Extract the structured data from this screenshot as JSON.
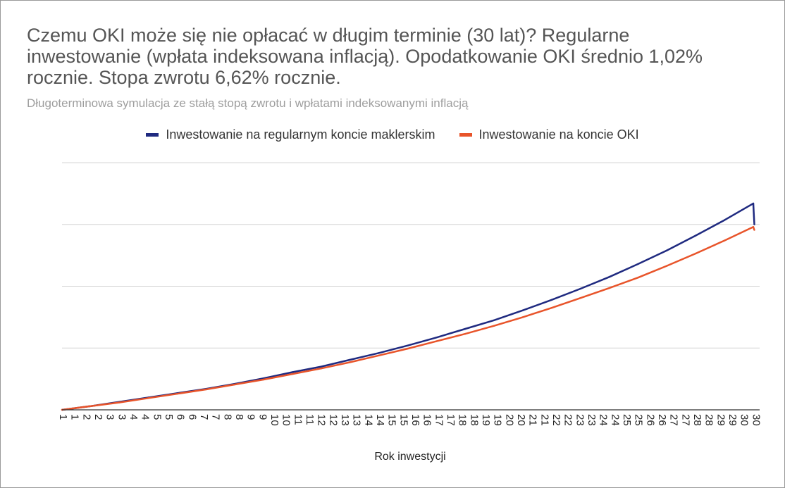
{
  "colors": {
    "broker": "#1f2a80",
    "oki": "#e8542a",
    "grid": "#d6d6d6"
  },
  "chart_data": {
    "type": "line",
    "title": "Czemu OKI może się nie opłacać w długim terminie (30 lat)? Regularne inwestowanie (wpłata indeksowana inflacją). Opodatkowanie OKI średnio 1,02% rocznie. Stopa zwrotu 6,62% rocznie.",
    "subtitle": "Długoterminowa symulacja ze stałą stopą zwrotu i wpłatami indeksowanymi inflacją",
    "xlabel": "Rok inwestycji",
    "ylabel": "",
    "x_ticks": [
      "1",
      "1",
      "2",
      "2",
      "3",
      "3",
      "4",
      "4",
      "5",
      "5",
      "6",
      "6",
      "7",
      "7",
      "8",
      "8",
      "9",
      "9",
      "10",
      "10",
      "11",
      "11",
      "12",
      "12",
      "13",
      "13",
      "14",
      "14",
      "15",
      "15",
      "16",
      "16",
      "17",
      "17",
      "18",
      "18",
      "19",
      "19",
      "20",
      "20",
      "21",
      "21",
      "22",
      "22",
      "23",
      "23",
      "24",
      "24",
      "25",
      "25",
      "26",
      "26",
      "27",
      "27",
      "28",
      "28",
      "29",
      "29",
      "30",
      "30"
    ],
    "grid": true,
    "legend_position": "top",
    "ylim": [
      0,
      4
    ],
    "series": [
      {
        "name": "Inwestowanie na regularnym koncie maklerskim",
        "color": "#1f2a80",
        "values": [
          0.0,
          0.06,
          0.13,
          0.2,
          0.27,
          0.34,
          0.42,
          0.51,
          0.61,
          0.7,
          0.81,
          0.92,
          1.04,
          1.17,
          1.31,
          1.45,
          1.61,
          1.78,
          1.96,
          2.15,
          2.36,
          2.58,
          2.82,
          3.07,
          3.34,
          3.0
        ]
      },
      {
        "name": "Inwestowanie na koncie OKI",
        "color": "#e8542a",
        "values": [
          0.0,
          0.06,
          0.12,
          0.19,
          0.26,
          0.33,
          0.41,
          0.49,
          0.58,
          0.67,
          0.77,
          0.88,
          0.99,
          1.11,
          1.23,
          1.36,
          1.5,
          1.65,
          1.81,
          1.97,
          2.14,
          2.33,
          2.53,
          2.74,
          2.96,
          2.91
        ]
      }
    ]
  }
}
